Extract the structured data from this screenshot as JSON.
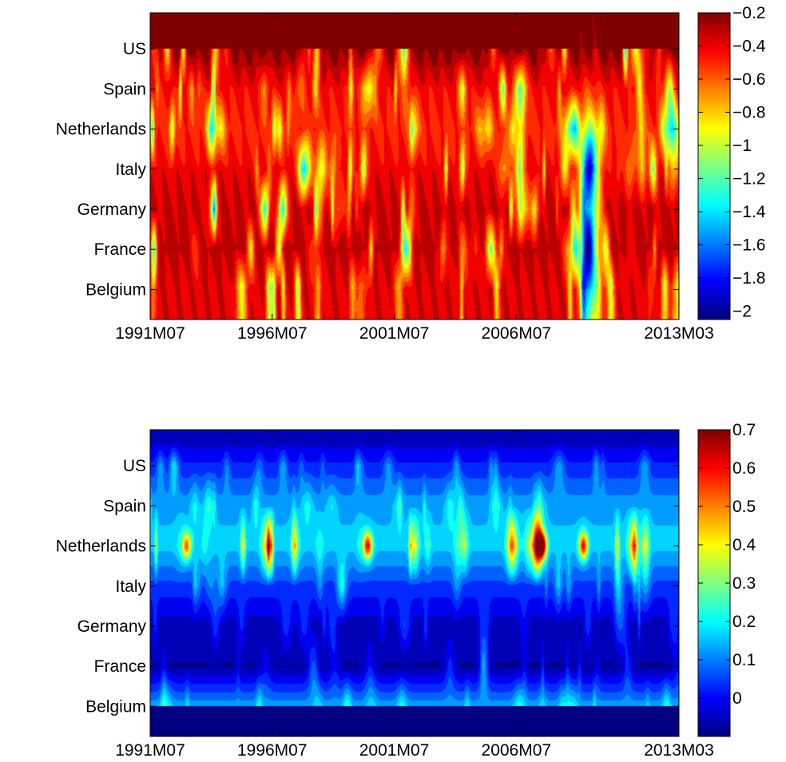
{
  "chart_data": [
    {
      "type": "heatmap",
      "title": "",
      "xlabel": "",
      "ylabel": "",
      "x_ticks": [
        "1991M07",
        "1996M07",
        "2001M07",
        "2006M07",
        "2013M03"
      ],
      "x_tick_months": [
        0,
        60,
        120,
        180,
        260
      ],
      "x_range_months": [
        0,
        260
      ],
      "y_categories": [
        "Belgium",
        "France",
        "Germany",
        "Italy",
        "Netherlands",
        "Spain",
        "US"
      ],
      "y_range": [
        0.25,
        7.9
      ],
      "colorbar": {
        "range": [
          -2.05,
          -0.2
        ],
        "ticks": [
          "-0.2",
          "-0.4",
          "-0.6",
          "-0.8",
          "-1",
          "-1.2",
          "-1.4",
          "-1.6",
          "-1.8",
          "-2"
        ],
        "tick_values": [
          -0.2,
          -0.4,
          -0.6,
          -0.8,
          -1.0,
          -1.2,
          -1.4,
          -1.6,
          -1.8,
          -2.0
        ]
      },
      "colormap": "jet",
      "grid": false,
      "features": {
        "row_base": {
          "US": -0.2,
          "Spain": -0.42,
          "Netherlands": -0.5,
          "Italy": -0.4,
          "Germany": -0.33,
          "France": -0.3,
          "Belgium": -0.38
        },
        "minimum_near": {
          "x_month": 216,
          "row": "France",
          "value": -2.0
        }
      }
    },
    {
      "type": "heatmap",
      "title": "",
      "xlabel": "",
      "ylabel": "",
      "x_ticks": [
        "1991M07",
        "1996M07",
        "2001M07",
        "2006M07",
        "2013M03"
      ],
      "x_tick_months": [
        0,
        60,
        120,
        180,
        260
      ],
      "x_range_months": [
        0,
        260
      ],
      "y_categories": [
        "Belgium",
        "France",
        "Germany",
        "Italy",
        "Netherlands",
        "Spain",
        "US"
      ],
      "y_range": [
        0.25,
        7.9
      ],
      "colorbar": {
        "range": [
          -0.1,
          0.7
        ],
        "ticks": [
          "0.7",
          "0.6",
          "0.5",
          "0.4",
          "0.3",
          "0.2",
          "0.1",
          "0"
        ],
        "tick_values": [
          0.7,
          0.6,
          0.5,
          0.4,
          0.3,
          0.2,
          0.1,
          0.0
        ]
      },
      "colormap": "jet",
      "grid": false,
      "features": {
        "row_base": {
          "US": 0.02,
          "Spain": 0.13,
          "Netherlands": 0.16,
          "Italy": 0.04,
          "Germany": -0.06,
          "France": -0.08,
          "Belgium": 0.13
        },
        "maximum_near": {
          "x_month": 193,
          "row": "Netherlands",
          "value": 0.66
        }
      }
    }
  ]
}
